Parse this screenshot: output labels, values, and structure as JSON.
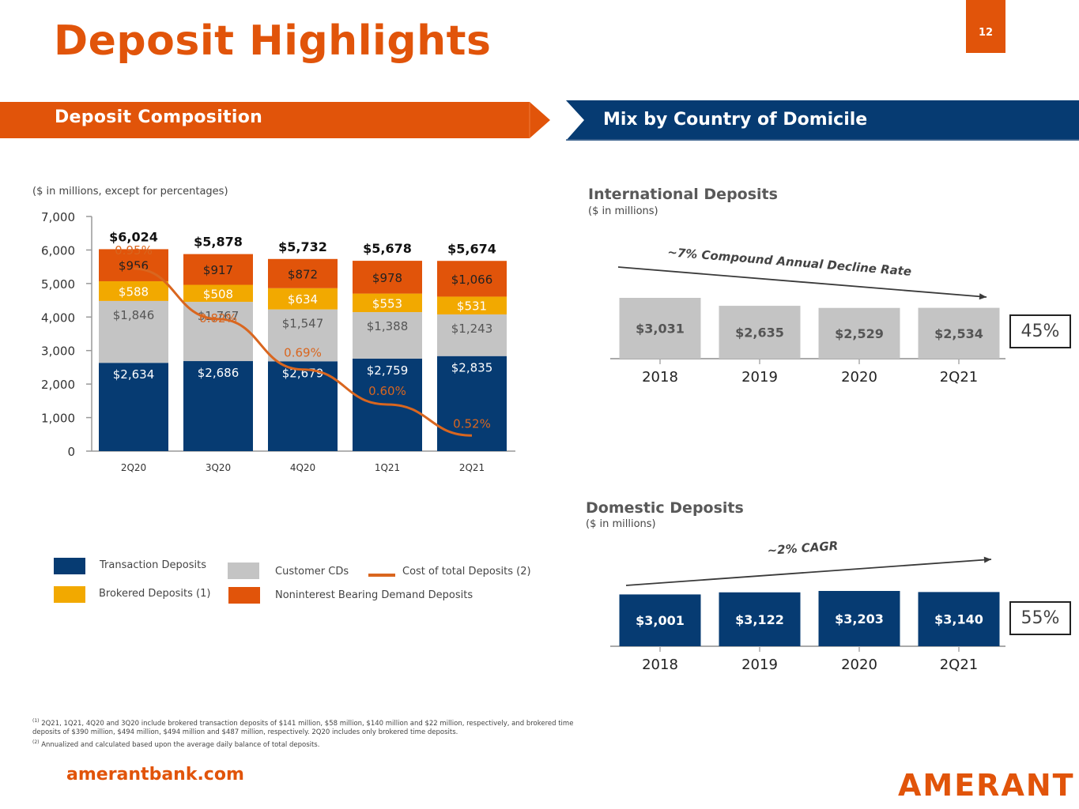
{
  "page": {
    "title": "Deposit Highlights",
    "page_number": "12",
    "website": "amerantbank.com",
    "logo_text": "AMERANT"
  },
  "colors": {
    "orange": "#e1540a",
    "navy": "#063b72",
    "gold": "#f2a900",
    "gray": "#c4c4c4",
    "line_orange": "#d9661f"
  },
  "left_panel": {
    "header": "Deposit Composition",
    "units_note": "($ in millions, except for percentages)"
  },
  "right_panel": {
    "header": "Mix by Country of Domicile",
    "international": {
      "title": "International Deposits",
      "units": "($ in millions)",
      "trend_label": "~7% Compound Annual Decline Rate",
      "share": "45%"
    },
    "domestic": {
      "title": "Domestic Deposits",
      "units": "($ in millions)",
      "trend_label": "~2% CAGR",
      "share": "55%"
    }
  },
  "legend": [
    {
      "label": "Transaction Deposits",
      "color": "#063b72",
      "kind": "box"
    },
    {
      "label": "Brokered Deposits (1)",
      "color": "#f2a900",
      "kind": "box"
    },
    {
      "label": "Customer CDs",
      "color": "#c4c4c4",
      "kind": "box"
    },
    {
      "label": "Noninterest Bearing Demand Deposits",
      "color": "#e1540a",
      "kind": "box"
    },
    {
      "label": "Cost of total Deposits (2)",
      "color": "#d9661f",
      "kind": "line"
    }
  ],
  "footnotes": [
    "2Q21, 1Q21, 4Q20 and 3Q20 include brokered transaction deposits of $141 million, $58 million, $140 million and $22 million, respectively, and brokered time deposits of $390 million, $494 million, $494 million and $487 million, respectively. 2Q20 includes only brokered time deposits.",
    "Annualized and calculated based upon the average daily balance of total deposits."
  ],
  "footnote_marks": [
    "(1)",
    "(2)"
  ],
  "chart_data": [
    {
      "type": "bar",
      "stacked": true,
      "title": "Deposit Composition",
      "ylabel": "($ in millions, except for percentages)",
      "categories": [
        "2Q20",
        "3Q20",
        "4Q20",
        "1Q21",
        "2Q21"
      ],
      "ylim": [
        0,
        7000
      ],
      "yticks": [
        0,
        1000,
        2000,
        3000,
        4000,
        5000,
        6000,
        7000
      ],
      "ytick_labels": [
        "0",
        "1,000",
        "2,000",
        "3,000",
        "4,000",
        "5,000",
        "6,000",
        "7,000"
      ],
      "series": [
        {
          "name": "Transaction Deposits",
          "values": [
            2634,
            2686,
            2679,
            2759,
            2835
          ],
          "labels": [
            "$2,634",
            "$2,686",
            "$2,679",
            "$2,759",
            "$2,835"
          ]
        },
        {
          "name": "Customer CDs",
          "values": [
            1846,
            1767,
            1547,
            1388,
            1243
          ],
          "labels": [
            "$1,846",
            "$1,767",
            "$1,547",
            "$1,388",
            "$1,243"
          ]
        },
        {
          "name": "Brokered Deposits (1)",
          "values": [
            588,
            508,
            634,
            553,
            531
          ],
          "labels": [
            "$588",
            "$508",
            "$634",
            "$553",
            "$531"
          ]
        },
        {
          "name": "Noninterest Bearing Demand Deposits",
          "values": [
            956,
            917,
            872,
            978,
            1066
          ],
          "labels": [
            "$956",
            "$917",
            "$872",
            "$978",
            "$1,066"
          ]
        }
      ],
      "totals": [
        6024,
        5878,
        5732,
        5678,
        5674
      ],
      "total_labels": [
        "$6,024",
        "$5,878",
        "$5,732",
        "$5,678",
        "$5,674"
      ],
      "line_series": {
        "name": "Cost of total Deposits (2)",
        "values_pct": [
          0.95,
          0.82,
          0.69,
          0.6,
          0.52
        ],
        "labels": [
          "0.95%",
          "0.82%",
          "0.69%",
          "0.60%",
          "0.52%"
        ]
      },
      "grid": false,
      "legend_position": "bottom"
    },
    {
      "type": "bar",
      "title": "International Deposits",
      "ylabel": "($ in millions)",
      "categories": [
        "2018",
        "2019",
        "2020",
        "2Q21"
      ],
      "values": [
        3031,
        2635,
        2529,
        2534
      ],
      "labels": [
        "$3,031",
        "$2,635",
        "$2,529",
        "$2,534"
      ],
      "annotation": "~7% Compound Annual Decline Rate",
      "share_of_total": "45%"
    },
    {
      "type": "bar",
      "title": "Domestic Deposits",
      "ylabel": "($ in millions)",
      "categories": [
        "2018",
        "2019",
        "2020",
        "2Q21"
      ],
      "values": [
        3001,
        3122,
        3203,
        3140
      ],
      "labels": [
        "$3,001",
        "$3,122",
        "$3,203",
        "$3,140"
      ],
      "annotation": "~2% CAGR",
      "share_of_total": "55%"
    }
  ]
}
